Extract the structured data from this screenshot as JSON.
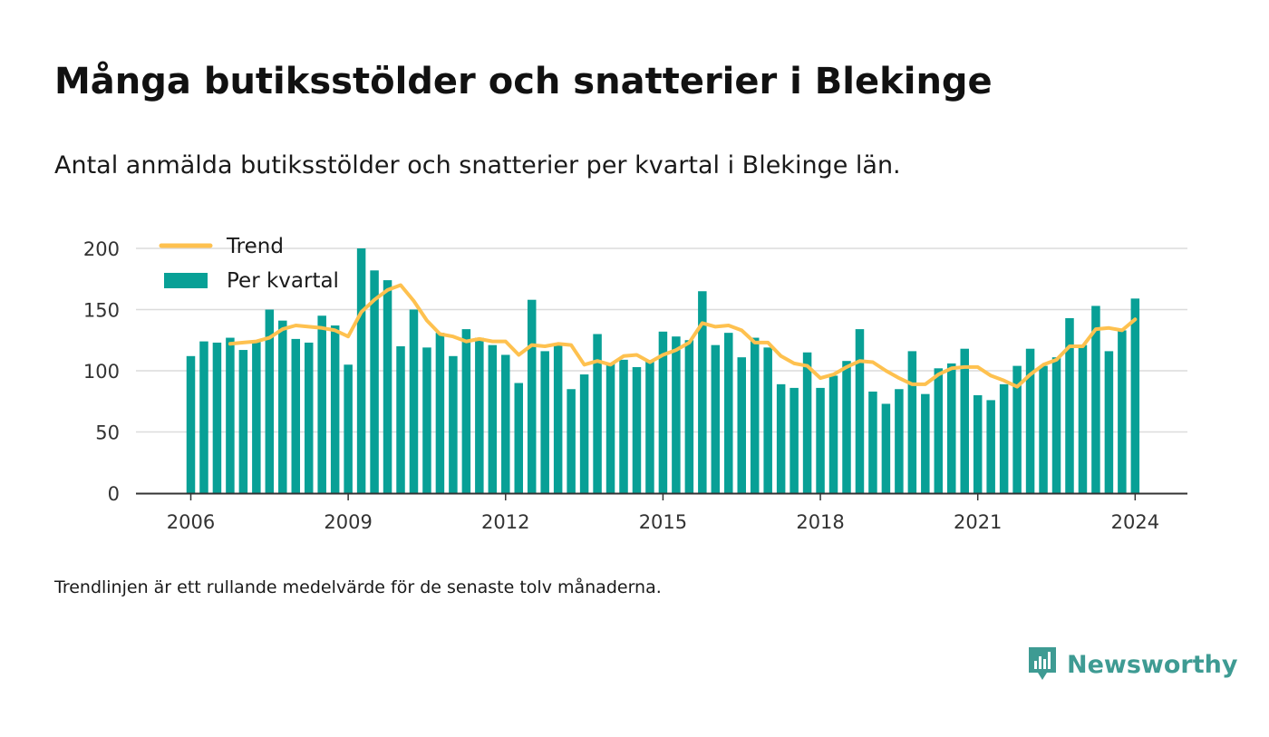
{
  "title": "Många butiksstölder och snatterier i Blekinge",
  "subtitle": "Antal anmälda butiksstölder och snatterier per kvartal i Blekinge län.",
  "footnote": "Trendlinjen är ett rullande medelvärde för de senaste tolv månaderna.",
  "logo": {
    "text": "Newsworthy",
    "icon": "newsworthy-logo-icon",
    "color": "#3e9b93"
  },
  "chart_data": {
    "type": "bar",
    "start": "2006-Q1",
    "ylim": [
      0,
      200
    ],
    "yticks": [
      0,
      50,
      100,
      150,
      200
    ],
    "xticks": [
      "2006",
      "2009",
      "2012",
      "2015",
      "2018",
      "2021",
      "2024"
    ],
    "grid": true,
    "legend_position": "top-left",
    "series": [
      {
        "name": "Per kvartal",
        "type": "bar",
        "color": "#08a096",
        "values": [
          112,
          124,
          123,
          127,
          117,
          124,
          150,
          141,
          126,
          123,
          145,
          137,
          105,
          200,
          182,
          174,
          120,
          150,
          119,
          131,
          112,
          134,
          127,
          121,
          113,
          90,
          158,
          116,
          121,
          85,
          97,
          130,
          106,
          109,
          103,
          108,
          132,
          128,
          125,
          165,
          121,
          131,
          111,
          127,
          119,
          89,
          86,
          115,
          86,
          96,
          108,
          134,
          83,
          73,
          85,
          116,
          81,
          102,
          106,
          118,
          80,
          76,
          89,
          104,
          118,
          104,
          111,
          143,
          121,
          153,
          116,
          133,
          159
        ]
      },
      {
        "name": "Trend",
        "type": "line",
        "color": "#fec14f",
        "values": [
          null,
          null,
          null,
          122,
          123,
          124,
          127,
          134,
          137,
          136,
          135,
          133,
          128,
          148,
          158,
          166,
          170,
          157,
          141,
          130,
          128,
          124,
          126,
          124,
          124,
          113,
          121,
          120,
          122,
          121,
          105,
          108,
          105,
          112,
          113,
          107,
          113,
          117,
          123,
          139,
          136,
          137,
          133,
          123,
          123,
          112,
          106,
          104,
          94,
          97,
          103,
          108,
          107,
          100,
          94,
          89,
          89,
          97,
          102,
          103,
          103,
          96,
          92,
          87,
          97,
          105,
          109,
          120,
          120,
          134,
          135,
          133,
          142
        ]
      }
    ]
  }
}
